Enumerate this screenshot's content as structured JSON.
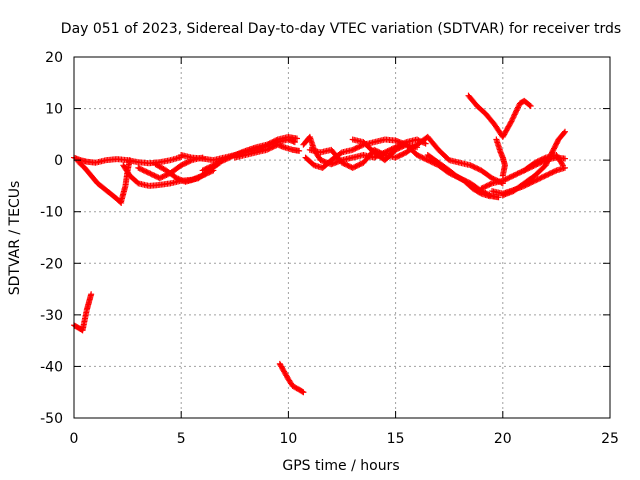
{
  "chart_data": {
    "type": "scatter",
    "title": "Day 051 of 2023, Sidereal Day-to-day VTEC variation (SDTVAR) for receiver trds",
    "xlabel": "GPS time / hours",
    "ylabel": "SDTVAR / TECUs",
    "xlim": [
      0,
      25
    ],
    "ylim": [
      -50,
      20
    ],
    "xticks": [
      0,
      5,
      10,
      15,
      20,
      25
    ],
    "yticks": [
      -50,
      -40,
      -30,
      -20,
      -10,
      0,
      10,
      20
    ],
    "xtick_labels": [
      "0",
      "5",
      "10",
      "15",
      "20",
      "25"
    ],
    "ytick_labels": [
      "-50",
      "-40",
      "-30",
      "-20",
      "-10",
      "0",
      "10",
      "20"
    ],
    "grid": true,
    "marker": "+",
    "series": [
      {
        "name": "SDTVAR",
        "color": "#ff0000",
        "tracks": [
          [
            [
              0.0,
              0.5
            ],
            [
              0.3,
              0.0
            ],
            [
              0.6,
              -0.3
            ],
            [
              1.0,
              -0.5
            ],
            [
              1.5,
              0.0
            ],
            [
              2.0,
              0.2
            ],
            [
              2.5,
              0.0
            ],
            [
              3.0,
              -0.4
            ],
            [
              3.5,
              -0.6
            ],
            [
              4.0,
              -0.4
            ],
            [
              4.5,
              0.0
            ],
            [
              5.0,
              0.6
            ]
          ],
          [
            [
              0.2,
              -0.3
            ],
            [
              0.5,
              -1.5
            ],
            [
              0.8,
              -3.0
            ],
            [
              1.1,
              -4.5
            ],
            [
              1.4,
              -5.5
            ],
            [
              1.7,
              -6.5
            ],
            [
              2.0,
              -7.5
            ],
            [
              2.2,
              -8.3
            ]
          ],
          [
            [
              2.2,
              -8.0
            ],
            [
              2.4,
              -5.0
            ],
            [
              2.5,
              -2.0
            ],
            [
              2.6,
              0.0
            ]
          ],
          [
            [
              2.3,
              -1.0
            ],
            [
              2.6,
              -3.0
            ],
            [
              3.0,
              -4.5
            ],
            [
              3.5,
              -5.0
            ],
            [
              4.0,
              -4.8
            ],
            [
              4.5,
              -4.5
            ],
            [
              5.0,
              -4.0
            ],
            [
              5.5,
              -3.8
            ],
            [
              6.0,
              -3.0
            ],
            [
              6.5,
              -2.0
            ]
          ],
          [
            [
              3.0,
              -1.5
            ],
            [
              3.5,
              -2.5
            ],
            [
              4.0,
              -3.5
            ],
            [
              4.5,
              -2.5
            ],
            [
              5.0,
              -1.0
            ],
            [
              5.5,
              0.0
            ],
            [
              6.0,
              0.5
            ]
          ],
          [
            [
              3.8,
              -0.8
            ],
            [
              4.3,
              -2.0
            ],
            [
              4.8,
              -3.5
            ],
            [
              5.2,
              -4.2
            ],
            [
              5.8,
              -3.5
            ],
            [
              6.3,
              -2.0
            ],
            [
              6.8,
              -0.5
            ]
          ],
          [
            [
              5.0,
              1.0
            ],
            [
              5.5,
              0.5
            ],
            [
              6.0,
              0.3
            ],
            [
              6.5,
              0.0
            ],
            [
              7.0,
              0.5
            ],
            [
              7.5,
              1.0
            ],
            [
              8.0,
              1.5
            ],
            [
              8.5,
              2.0
            ],
            [
              9.0,
              2.8
            ],
            [
              9.5,
              3.5
            ],
            [
              10.0,
              4.0
            ],
            [
              10.3,
              3.5
            ]
          ],
          [
            [
              6.0,
              -2.0
            ],
            [
              6.5,
              -1.0
            ],
            [
              7.0,
              0.0
            ],
            [
              7.5,
              1.0
            ],
            [
              8.0,
              1.8
            ],
            [
              8.5,
              2.5
            ],
            [
              9.0,
              3.0
            ],
            [
              9.5,
              4.0
            ],
            [
              10.0,
              4.5
            ],
            [
              10.4,
              4.2
            ]
          ],
          [
            [
              7.5,
              0.5
            ],
            [
              8.0,
              1.0
            ],
            [
              8.5,
              1.5
            ],
            [
              9.0,
              2.0
            ],
            [
              9.5,
              3.0
            ],
            [
              9.8,
              2.5
            ],
            [
              10.2,
              2.0
            ],
            [
              10.5,
              1.8
            ]
          ],
          [
            [
              10.7,
              3.0
            ],
            [
              11.0,
              4.5
            ],
            [
              11.2,
              2.0
            ],
            [
              11.5,
              0.0
            ],
            [
              12.0,
              -0.8
            ],
            [
              12.5,
              0.0
            ],
            [
              13.0,
              0.5
            ],
            [
              13.5,
              1.0
            ],
            [
              14.0,
              0.5
            ],
            [
              14.5,
              1.5
            ],
            [
              15.0,
              2.5
            ],
            [
              15.5,
              3.5
            ],
            [
              16.0,
              4.0
            ],
            [
              16.4,
              3.2
            ]
          ],
          [
            [
              10.8,
              0.5
            ],
            [
              11.2,
              -1.0
            ],
            [
              11.6,
              -1.5
            ],
            [
              12.0,
              0.0
            ],
            [
              12.5,
              1.5
            ],
            [
              13.0,
              2.0
            ],
            [
              13.5,
              3.0
            ],
            [
              14.0,
              3.5
            ],
            [
              14.5,
              4.0
            ],
            [
              15.0,
              3.8
            ],
            [
              15.5,
              3.0
            ],
            [
              16.0,
              2.5
            ]
          ],
          [
            [
              11.0,
              2.0
            ],
            [
              11.5,
              1.5
            ],
            [
              12.0,
              2.0
            ],
            [
              12.5,
              -0.5
            ],
            [
              13.0,
              -1.5
            ],
            [
              13.5,
              -0.5
            ],
            [
              14.0,
              2.0
            ],
            [
              14.5,
              1.0
            ],
            [
              15.0,
              0.5
            ],
            [
              15.5,
              1.5
            ],
            [
              16.0,
              3.0
            ],
            [
              16.5,
              4.5
            ],
            [
              17.0,
              2.0
            ],
            [
              17.5,
              0.0
            ],
            [
              18.0,
              -0.5
            ],
            [
              18.5,
              -1.0
            ],
            [
              19.0,
              -2.0
            ],
            [
              19.5,
              -3.5
            ],
            [
              20.0,
              -4.5
            ]
          ],
          [
            [
              13.0,
              4.0
            ],
            [
              13.5,
              3.5
            ],
            [
              14.0,
              1.5
            ],
            [
              14.5,
              0.0
            ],
            [
              15.0,
              2.0
            ],
            [
              15.5,
              3.0
            ],
            [
              16.0,
              1.0
            ],
            [
              16.5,
              0.0
            ],
            [
              17.0,
              -1.0
            ],
            [
              17.5,
              -2.5
            ],
            [
              18.0,
              -3.5
            ],
            [
              18.5,
              -4.5
            ],
            [
              19.0,
              -6.0
            ],
            [
              19.5,
              -7.0
            ],
            [
              19.8,
              -7.2
            ]
          ],
          [
            [
              16.5,
              1.0
            ],
            [
              17.0,
              -0.5
            ],
            [
              17.5,
              -2.0
            ],
            [
              17.8,
              -3.0
            ],
            [
              18.2,
              -4.0
            ],
            [
              18.6,
              -5.5
            ],
            [
              19.0,
              -6.5
            ],
            [
              19.4,
              -7.0
            ]
          ],
          [
            [
              18.4,
              12.5
            ],
            [
              18.8,
              10.5
            ],
            [
              19.2,
              9.0
            ],
            [
              19.6,
              7.0
            ],
            [
              20.0,
              4.5
            ],
            [
              20.4,
              7.5
            ],
            [
              20.8,
              11.0
            ],
            [
              21.0,
              11.5
            ],
            [
              21.3,
              10.5
            ]
          ],
          [
            [
              19.7,
              4.0
            ],
            [
              19.9,
              1.5
            ],
            [
              20.0,
              0.5
            ],
            [
              20.1,
              -1.0
            ],
            [
              20.0,
              -3.0
            ]
          ],
          [
            [
              19.0,
              -5.5
            ],
            [
              19.5,
              -4.5
            ],
            [
              20.0,
              -4.0
            ],
            [
              20.5,
              -3.0
            ],
            [
              21.0,
              -2.0
            ],
            [
              21.5,
              -1.0
            ],
            [
              22.0,
              0.0
            ],
            [
              22.5,
              0.5
            ],
            [
              22.9,
              0.3
            ]
          ],
          [
            [
              19.5,
              -6.0
            ],
            [
              20.0,
              -6.5
            ],
            [
              20.5,
              -5.8
            ],
            [
              21.0,
              -5.0
            ],
            [
              21.5,
              -4.0
            ],
            [
              22.0,
              -3.0
            ],
            [
              22.5,
              -2.0
            ],
            [
              22.9,
              -1.5
            ]
          ],
          [
            [
              20.0,
              -6.8
            ],
            [
              20.5,
              -6.0
            ],
            [
              21.0,
              -4.5
            ],
            [
              21.5,
              -3.0
            ],
            [
              22.0,
              -1.0
            ],
            [
              22.3,
              1.5
            ],
            [
              22.6,
              4.0
            ],
            [
              22.9,
              5.5
            ]
          ],
          [
            [
              21.0,
              -2.0
            ],
            [
              21.5,
              -0.5
            ],
            [
              22.0,
              0.5
            ],
            [
              22.5,
              1.0
            ],
            [
              22.8,
              -1.0
            ]
          ],
          [
            [
              0.0,
              -32.0
            ],
            [
              0.2,
              -32.5
            ],
            [
              0.4,
              -33.0
            ],
            [
              0.5,
              -31.0
            ],
            [
              0.6,
              -29.0
            ],
            [
              0.7,
              -27.5
            ],
            [
              0.8,
              -26.0
            ]
          ],
          [
            [
              9.6,
              -39.5
            ],
            [
              9.8,
              -41.0
            ],
            [
              10.0,
              -42.5
            ],
            [
              10.2,
              -43.8
            ],
            [
              10.5,
              -44.5
            ],
            [
              10.7,
              -45.0
            ]
          ]
        ]
      }
    ]
  }
}
